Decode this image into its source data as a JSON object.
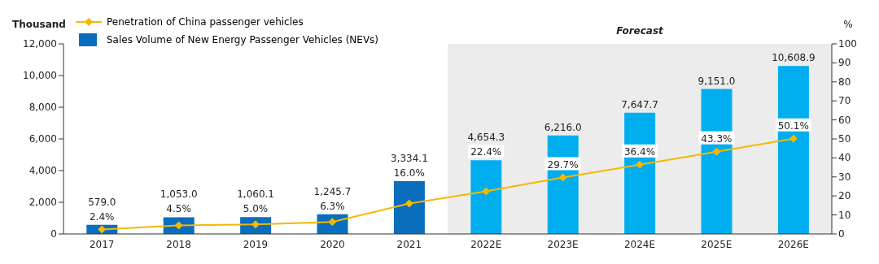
{
  "chart_data": {
    "type": "bar",
    "ylabel": "Thousand",
    "y2label": "%",
    "categories": [
      "2017",
      "2018",
      "2019",
      "2020",
      "2021",
      "2022E",
      "2023E",
      "2024E",
      "2025E",
      "2026E"
    ],
    "series": [
      {
        "name": "Penetration of China passenger vehicles",
        "type": "line",
        "axis": "y2",
        "color": "#f5b800",
        "marker": "diamond",
        "values": [
          2.4,
          4.5,
          5.0,
          6.3,
          16.0,
          22.4,
          29.7,
          36.4,
          43.3,
          50.1
        ],
        "value_labels": [
          "2.4%",
          "4.5%",
          "5.0%",
          "6.3%",
          "16.0%",
          "22.4%",
          "29.7%",
          "36.4%",
          "43.3%",
          "50.1%"
        ]
      },
      {
        "name": "Sales Volume of New Energy Passenger Vehicles (NEVs)",
        "type": "bar",
        "color": "#0a6ebd",
        "colors": [
          "#0a6ebd",
          "#0a6ebd",
          "#0a6ebd",
          "#0a6ebd",
          "#0a6ebd",
          "#00aeef",
          "#00aeef",
          "#00aeef",
          "#00aeef",
          "#00aeef"
        ],
        "values": [
          579.0,
          1053.0,
          1060.1,
          1245.7,
          3334.1,
          4654.3,
          6216.0,
          7647.7,
          9151.0,
          10608.9
        ],
        "value_labels": [
          "579.0",
          "1,053.0",
          "1,060.1",
          "1,245.7",
          "3,334.1",
          "4,654.3",
          "6,216.0",
          "7,647.7",
          "9,151.0",
          "10,608.9"
        ]
      }
    ],
    "ylim": [
      0,
      12000
    ],
    "yticks": [
      0,
      {
        "value": 2000,
        "label": "2,000"
      },
      {
        "value": 4000,
        "label": "4,000"
      },
      {
        "value": 6000,
        "label": "6,000"
      },
      {
        "value": 8000,
        "label": "8,000"
      },
      {
        "value": 10000,
        "label": "10,000"
      },
      {
        "value": 12000,
        "label": "12,000"
      }
    ],
    "y2lim": [
      0,
      100
    ],
    "y2ticks": [
      0,
      10,
      20,
      30,
      40,
      50,
      60,
      70,
      80,
      90,
      100
    ],
    "bands": [
      {
        "axis": "x",
        "from": "2022E",
        "to": "2026E",
        "label": "Forecast",
        "color": "#ececec"
      }
    ],
    "legend": "top left",
    "grid": false
  }
}
